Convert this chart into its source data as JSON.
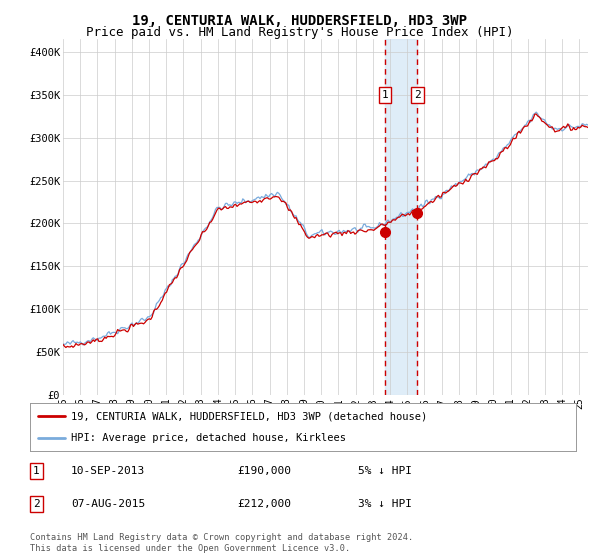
{
  "title": "19, CENTURIA WALK, HUDDERSFIELD, HD3 3WP",
  "subtitle": "Price paid vs. HM Land Registry's House Price Index (HPI)",
  "title_fontsize": 10,
  "subtitle_fontsize": 9,
  "ylabel_ticks": [
    "£0",
    "£50K",
    "£100K",
    "£150K",
    "£200K",
    "£250K",
    "£300K",
    "£350K",
    "£400K"
  ],
  "ytick_values": [
    0,
    50000,
    100000,
    150000,
    200000,
    250000,
    300000,
    350000,
    400000
  ],
  "ylim": [
    0,
    415000
  ],
  "xlim_start": 1995.0,
  "xlim_end": 2025.5,
  "transaction1": {
    "date_num": 2013.69,
    "price": 190000,
    "label": "1",
    "date_str": "10-SEP-2013",
    "price_str": "£190,000",
    "hpi_diff": "5% ↓ HPI"
  },
  "transaction2": {
    "date_num": 2015.59,
    "price": 212000,
    "label": "2",
    "date_str": "07-AUG-2015",
    "price_str": "£212,000",
    "hpi_diff": "3% ↓ HPI"
  },
  "legend_label_red": "19, CENTURIA WALK, HUDDERSFIELD, HD3 3WP (detached house)",
  "legend_label_blue": "HPI: Average price, detached house, Kirklees",
  "footer": "Contains HM Land Registry data © Crown copyright and database right 2024.\nThis data is licensed under the Open Government Licence v3.0.",
  "line_color_red": "#cc0000",
  "line_color_blue": "#7aabdc",
  "bg_color": "#ffffff",
  "grid_color": "#cccccc",
  "shade_color": "#daeaf7",
  "font_family": "monospace"
}
